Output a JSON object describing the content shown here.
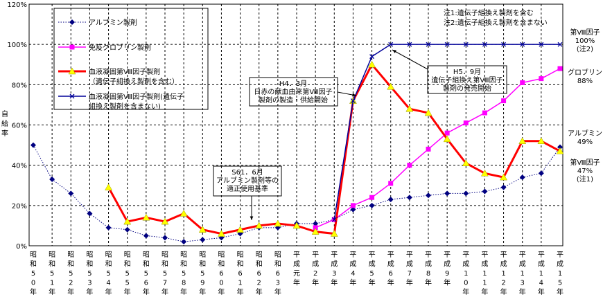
{
  "chart_data": {
    "type": "line",
    "y_label": "自給率",
    "categories": [
      "昭和50年",
      "昭和51年",
      "昭和52年",
      "昭和53年",
      "昭和54年",
      "昭和55年",
      "昭和56年",
      "昭和57年",
      "昭和58年",
      "昭和59年",
      "昭和60年",
      "昭和61年",
      "昭和62年",
      "昭和63年",
      "平成元年",
      "平成2年",
      "平成3年",
      "平成4年",
      "平成5年",
      "平成6年",
      "平成7年",
      "平成8年",
      "平成9年",
      "平成10年",
      "平成11年",
      "平成12年",
      "平成13年",
      "平成14年",
      "平成15年"
    ],
    "series": [
      {
        "name": "アルブミン製剤",
        "color": "#000080",
        "marker": "diamond",
        "dashed": true,
        "values": [
          50,
          33,
          26,
          16,
          9,
          8,
          5,
          4,
          2,
          3,
          4,
          6,
          9,
          9,
          11,
          11,
          13,
          18,
          20,
          23,
          24,
          25,
          26,
          26,
          27,
          29,
          34,
          36,
          49
        ]
      },
      {
        "name": "免疫グロブリン製剤",
        "color": "#ff00ff",
        "marker": "square",
        "dashed": false,
        "values": [
          null,
          null,
          null,
          null,
          null,
          null,
          null,
          null,
          null,
          null,
          null,
          null,
          null,
          null,
          null,
          9,
          13,
          20,
          24,
          31,
          40,
          48,
          56,
          61,
          66,
          72,
          81,
          83,
          88
        ]
      },
      {
        "name": "血液凝固第Ⅷ因子製剤\n（遺伝子組換え製剤を含む）",
        "color": "#ff0000",
        "marker": "triangle",
        "dashed": false,
        "values": [
          null,
          null,
          null,
          null,
          29,
          12,
          14,
          12,
          16,
          8,
          6,
          8,
          10,
          11,
          10,
          7,
          6,
          72,
          90,
          79,
          68,
          66,
          53,
          41,
          36,
          34,
          52,
          52,
          47
        ]
      },
      {
        "name": "血液凝固第Ⅷ因子製剤(遺伝子\n組換え製剤を含まない)",
        "color": "#000099",
        "marker": "x",
        "dashed": false,
        "values": [
          null,
          null,
          null,
          null,
          null,
          null,
          null,
          null,
          null,
          null,
          null,
          null,
          null,
          null,
          null,
          null,
          13,
          72,
          94,
          100,
          100,
          100,
          100,
          100,
          100,
          100,
          100,
          100,
          100
        ]
      }
    ],
    "ylim": [
      0,
      120
    ],
    "yticks": [
      {
        "value": 0,
        "label": "0%"
      },
      {
        "value": 20,
        "label": "20%"
      },
      {
        "value": 40,
        "label": "40%"
      },
      {
        "value": 60,
        "label": "60%"
      },
      {
        "value": 80,
        "label": "80%"
      },
      {
        "value": 100,
        "label": "100%"
      },
      {
        "value": 120,
        "label": "120%"
      }
    ],
    "grid": true,
    "notes": [
      "注1:遺伝子組換え製剤を含む",
      "注2:遺伝子組換え製剤を含まない"
    ],
    "annotations": [
      "S61．6月\nアルブミン製剤等の\n適正使用基準",
      "H4．3月\n日赤の献血由来第Ⅷ因子\n製剤の製造・供給開始",
      "H5．9月\n遺伝子組換え第Ⅷ因子\n製剤の発売開始"
    ],
    "end_labels": [
      "第Ⅷ因子\n100%\n(注2)",
      "グロブリン\n88%",
      "アルブミン\n49%",
      "第Ⅷ因子\n47%\n(注1)"
    ]
  }
}
